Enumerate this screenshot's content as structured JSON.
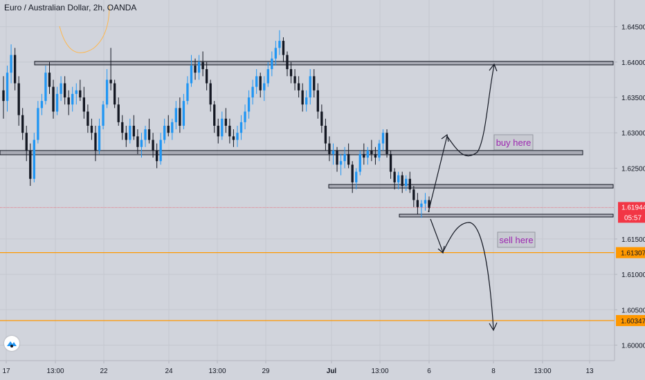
{
  "chart_data": {
    "type": "candlestick",
    "title": "Euro / Australian Dollar, 2h, OANDA",
    "symbol": "Euro / Australian Dollar",
    "interval": "2h",
    "broker": "OANDA",
    "y_range": [
      1.598,
      1.6475
    ],
    "y_ticks": [
      "1.64500",
      "1.64000",
      "1.63500",
      "1.63000",
      "1.62500",
      "1.61500",
      "1.61000",
      "1.60500",
      "1.60000"
    ],
    "x_ticks": [
      {
        "label": "17",
        "bold": false
      },
      {
        "label": "13:00",
        "bold": false
      },
      {
        "label": "22",
        "bold": false
      },
      {
        "label": "24",
        "bold": false
      },
      {
        "label": "13:00",
        "bold": false
      },
      {
        "label": "29",
        "bold": false
      },
      {
        "label": "Jul",
        "bold": true
      },
      {
        "label": "13:00",
        "bold": false
      },
      {
        "label": "6",
        "bold": false
      },
      {
        "label": "8",
        "bold": false
      },
      {
        "label": "13:00",
        "bold": false
      },
      {
        "label": "13",
        "bold": false
      }
    ],
    "current_price": {
      "label": "1.61944",
      "countdown": "05:57",
      "value": 1.61944,
      "color": "#f23645"
    },
    "horizontal_lines": [
      {
        "label": "1.61307",
        "value": 1.61307,
        "color": "#ff9800"
      },
      {
        "label": "1.60347",
        "value": 1.60347,
        "color": "#ff9800"
      }
    ],
    "zones": [
      {
        "name": "resistance-top",
        "top": 1.6401,
        "bottom": 1.6396
      },
      {
        "name": "middle-zone",
        "top": 1.6275,
        "bottom": 1.6269
      },
      {
        "name": "support-upper",
        "top": 1.6227,
        "bottom": 1.6222
      },
      {
        "name": "support-lower",
        "top": 1.6185,
        "bottom": 1.6182
      }
    ],
    "annotations": [
      {
        "text": "buy here",
        "color": "#9c27b0"
      },
      {
        "text": "sell here",
        "color": "#9c27b0"
      }
    ],
    "up_color": "#2196f3",
    "down_color": "#131722",
    "candles": [
      [
        1.636,
        1.638,
        1.632,
        1.6345
      ],
      [
        1.6345,
        1.6395,
        1.633,
        1.6385
      ],
      [
        1.6385,
        1.6425,
        1.637,
        1.641
      ],
      [
        1.641,
        1.642,
        1.636,
        1.637
      ],
      [
        1.637,
        1.638,
        1.631,
        1.6325
      ],
      [
        1.6325,
        1.6335,
        1.629,
        1.63
      ],
      [
        1.63,
        1.631,
        1.626,
        1.6275
      ],
      [
        1.6275,
        1.6285,
        1.6225,
        1.6235
      ],
      [
        1.6235,
        1.63,
        1.623,
        1.629
      ],
      [
        1.629,
        1.6345,
        1.6285,
        1.6335
      ],
      [
        1.6335,
        1.6355,
        1.6325,
        1.6345
      ],
      [
        1.6345,
        1.6395,
        1.634,
        1.6385
      ],
      [
        1.6385,
        1.64,
        1.6355,
        1.6365
      ],
      [
        1.6365,
        1.6375,
        1.632,
        1.633
      ],
      [
        1.633,
        1.6365,
        1.6325,
        1.6355
      ],
      [
        1.6355,
        1.638,
        1.6345,
        1.637
      ],
      [
        1.637,
        1.638,
        1.634,
        1.635
      ],
      [
        1.635,
        1.636,
        1.6325,
        1.634
      ],
      [
        1.634,
        1.6365,
        1.633,
        1.6355
      ],
      [
        1.6355,
        1.637,
        1.634,
        1.636
      ],
      [
        1.636,
        1.6375,
        1.6345,
        1.635
      ],
      [
        1.635,
        1.6365,
        1.632,
        1.633
      ],
      [
        1.633,
        1.634,
        1.63,
        1.631
      ],
      [
        1.631,
        1.632,
        1.629,
        1.63
      ],
      [
        1.63,
        1.631,
        1.626,
        1.6275
      ],
      [
        1.6275,
        1.632,
        1.627,
        1.631
      ],
      [
        1.631,
        1.6345,
        1.6305,
        1.634
      ],
      [
        1.634,
        1.639,
        1.6335,
        1.6375
      ],
      [
        1.6375,
        1.642,
        1.636,
        1.637
      ],
      [
        1.637,
        1.6375,
        1.6335,
        1.634
      ],
      [
        1.634,
        1.635,
        1.631,
        1.6315
      ],
      [
        1.6315,
        1.6325,
        1.629,
        1.63
      ],
      [
        1.63,
        1.631,
        1.628,
        1.629
      ],
      [
        1.629,
        1.632,
        1.6285,
        1.631
      ],
      [
        1.631,
        1.6325,
        1.629,
        1.6295
      ],
      [
        1.6295,
        1.6305,
        1.627,
        1.628
      ],
      [
        1.628,
        1.63,
        1.6265,
        1.629
      ],
      [
        1.629,
        1.631,
        1.628,
        1.6305
      ],
      [
        1.6305,
        1.632,
        1.6285,
        1.629
      ],
      [
        1.629,
        1.63,
        1.6265,
        1.6275
      ],
      [
        1.6275,
        1.6285,
        1.625,
        1.626
      ],
      [
        1.626,
        1.63,
        1.6255,
        1.629
      ],
      [
        1.629,
        1.632,
        1.6285,
        1.631
      ],
      [
        1.631,
        1.6325,
        1.6295,
        1.63
      ],
      [
        1.63,
        1.632,
        1.629,
        1.6315
      ],
      [
        1.6315,
        1.6345,
        1.6305,
        1.6335
      ],
      [
        1.6335,
        1.635,
        1.63,
        1.631
      ],
      [
        1.631,
        1.6355,
        1.6305,
        1.6345
      ],
      [
        1.6345,
        1.638,
        1.634,
        1.637
      ],
      [
        1.637,
        1.641,
        1.6365,
        1.6395
      ],
      [
        1.6395,
        1.6405,
        1.6375,
        1.6385
      ],
      [
        1.6385,
        1.641,
        1.6375,
        1.64
      ],
      [
        1.64,
        1.6415,
        1.638,
        1.639
      ],
      [
        1.639,
        1.64,
        1.636,
        1.637
      ],
      [
        1.637,
        1.6375,
        1.633,
        1.634
      ],
      [
        1.634,
        1.6345,
        1.63,
        1.631
      ],
      [
        1.631,
        1.632,
        1.6285,
        1.6295
      ],
      [
        1.6295,
        1.633,
        1.629,
        1.632
      ],
      [
        1.632,
        1.6335,
        1.63,
        1.631
      ],
      [
        1.631,
        1.632,
        1.6285,
        1.6295
      ],
      [
        1.6295,
        1.6305,
        1.628,
        1.629
      ],
      [
        1.629,
        1.631,
        1.628,
        1.63
      ],
      [
        1.63,
        1.6325,
        1.629,
        1.6315
      ],
      [
        1.6315,
        1.634,
        1.6305,
        1.633
      ],
      [
        1.633,
        1.636,
        1.632,
        1.635
      ],
      [
        1.635,
        1.6375,
        1.634,
        1.6365
      ],
      [
        1.6365,
        1.639,
        1.6355,
        1.638
      ],
      [
        1.638,
        1.6385,
        1.635,
        1.636
      ],
      [
        1.636,
        1.638,
        1.6345,
        1.637
      ],
      [
        1.637,
        1.64,
        1.6365,
        1.639
      ],
      [
        1.639,
        1.6415,
        1.638,
        1.6405
      ],
      [
        1.6405,
        1.643,
        1.6395,
        1.642
      ],
      [
        1.642,
        1.6445,
        1.641,
        1.643
      ],
      [
        1.643,
        1.6435,
        1.64,
        1.641
      ],
      [
        1.641,
        1.6415,
        1.638,
        1.639
      ],
      [
        1.639,
        1.64,
        1.637,
        1.638
      ],
      [
        1.638,
        1.639,
        1.636,
        1.637
      ],
      [
        1.637,
        1.638,
        1.635,
        1.636
      ],
      [
        1.636,
        1.637,
        1.633,
        1.634
      ],
      [
        1.634,
        1.636,
        1.633,
        1.635
      ],
      [
        1.635,
        1.639,
        1.634,
        1.638
      ],
      [
        1.638,
        1.639,
        1.635,
        1.636
      ],
      [
        1.636,
        1.637,
        1.632,
        1.633
      ],
      [
        1.633,
        1.634,
        1.63,
        1.631
      ],
      [
        1.631,
        1.632,
        1.6275,
        1.6285
      ],
      [
        1.6285,
        1.6295,
        1.626,
        1.627
      ],
      [
        1.627,
        1.6285,
        1.6255,
        1.6275
      ],
      [
        1.6275,
        1.628,
        1.6245,
        1.6255
      ],
      [
        1.6255,
        1.627,
        1.624,
        1.626
      ],
      [
        1.626,
        1.628,
        1.625,
        1.627
      ],
      [
        1.627,
        1.6285,
        1.625,
        1.6255
      ],
      [
        1.6255,
        1.626,
        1.6215,
        1.623
      ],
      [
        1.623,
        1.625,
        1.622,
        1.6245
      ],
      [
        1.6245,
        1.6275,
        1.624,
        1.627
      ],
      [
        1.627,
        1.6285,
        1.6255,
        1.6265
      ],
      [
        1.6265,
        1.628,
        1.6255,
        1.6275
      ],
      [
        1.6275,
        1.629,
        1.626,
        1.627
      ],
      [
        1.627,
        1.628,
        1.6255,
        1.6265
      ],
      [
        1.6265,
        1.629,
        1.626,
        1.6285
      ],
      [
        1.6285,
        1.6305,
        1.6275,
        1.63
      ],
      [
        1.63,
        1.6305,
        1.6265,
        1.627
      ],
      [
        1.627,
        1.6275,
        1.6235,
        1.6245
      ],
      [
        1.6245,
        1.625,
        1.622,
        1.623
      ],
      [
        1.623,
        1.6245,
        1.622,
        1.624
      ],
      [
        1.624,
        1.6245,
        1.6215,
        1.6225
      ],
      [
        1.6225,
        1.624,
        1.6218,
        1.6235
      ],
      [
        1.6235,
        1.6245,
        1.6215,
        1.622
      ],
      [
        1.622,
        1.6225,
        1.6195,
        1.6205
      ],
      [
        1.6205,
        1.6215,
        1.6185,
        1.6195
      ],
      [
        1.6195,
        1.6205,
        1.618,
        1.62
      ],
      [
        1.62,
        1.6215,
        1.619,
        1.6205
      ],
      [
        1.6205,
        1.621,
        1.6188,
        1.6194
      ]
    ]
  }
}
